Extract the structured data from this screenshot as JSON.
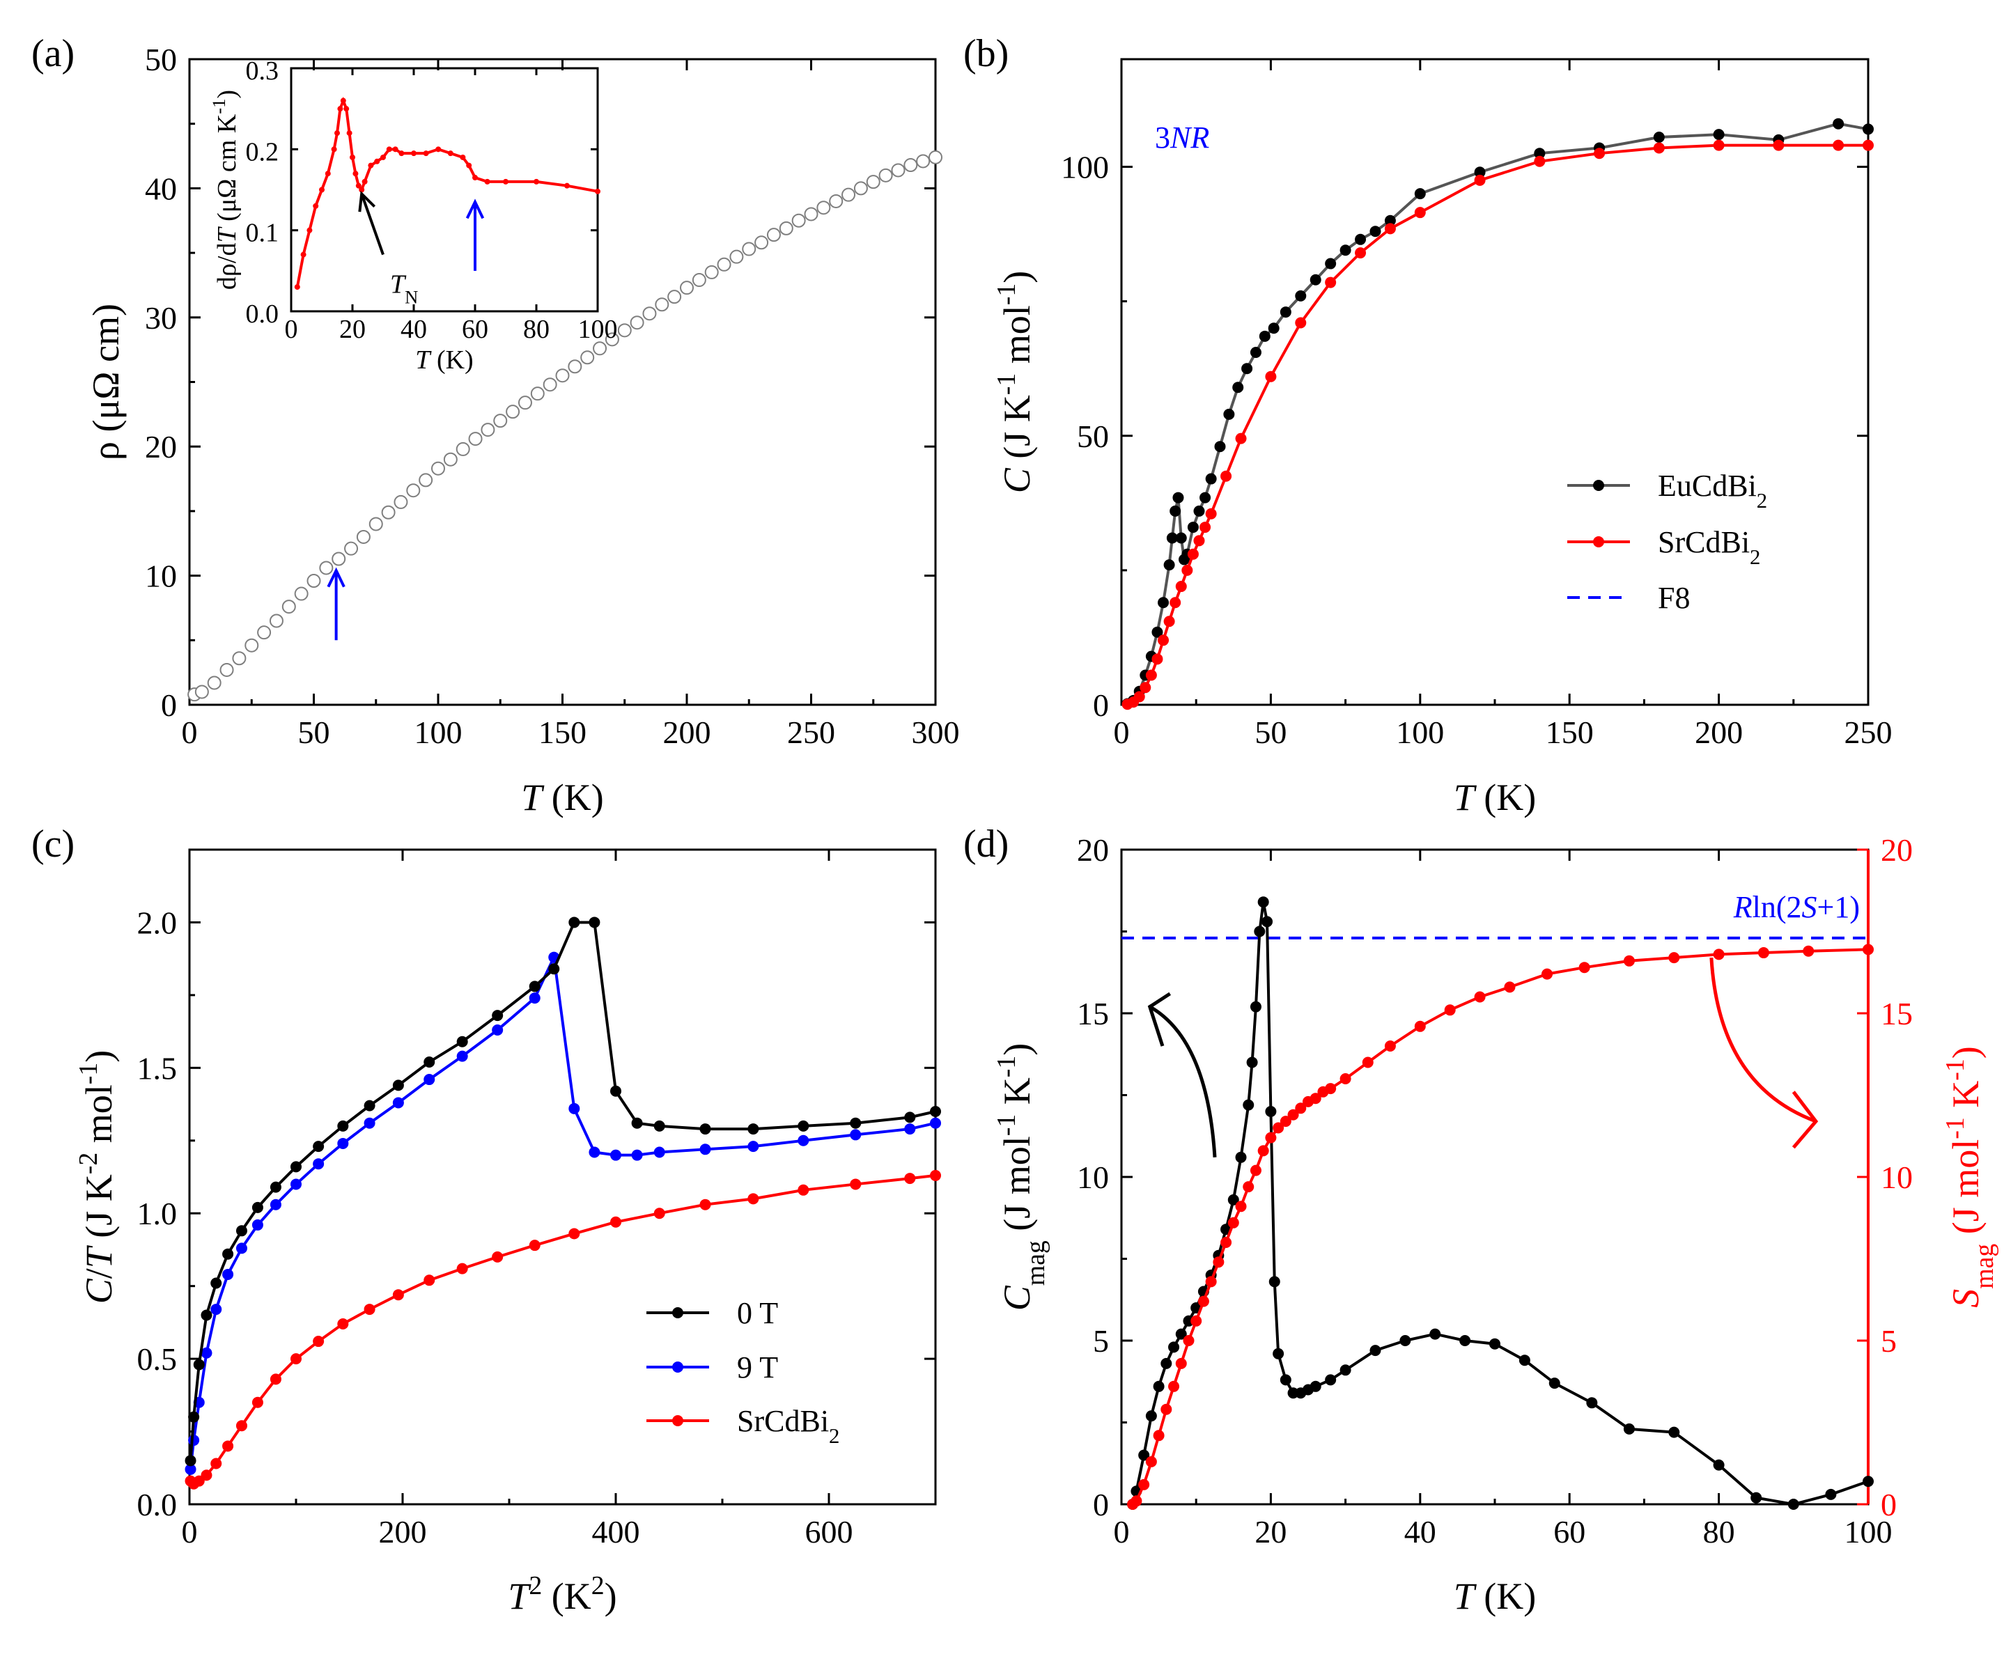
{
  "figure": {
    "panels": [
      "(a)",
      "(b)",
      "(c)",
      "(d)"
    ]
  },
  "chart_data": [
    {
      "id": "a",
      "type": "scatter",
      "panel_label": "(a)",
      "xlabel": "T (K)",
      "xlabel_parts": [
        "T",
        " (K)"
      ],
      "ylabel": "ρ (μΩ cm)",
      "xlim": [
        0,
        300
      ],
      "ylim": [
        0,
        50
      ],
      "xticks": [
        0,
        50,
        100,
        150,
        200,
        250,
        300
      ],
      "yticks": [
        0,
        10,
        20,
        30,
        40,
        50
      ],
      "series": [
        {
          "name": "ρ(T)",
          "color": "#7f7f7f",
          "marker": "open-circle",
          "x": [
            2,
            5,
            10,
            15,
            20,
            25,
            30,
            35,
            40,
            45,
            50,
            55,
            60,
            65,
            70,
            75,
            80,
            85,
            90,
            95,
            100,
            105,
            110,
            115,
            120,
            125,
            130,
            135,
            140,
            145,
            150,
            155,
            160,
            165,
            170,
            175,
            180,
            185,
            190,
            195,
            200,
            205,
            210,
            215,
            220,
            225,
            230,
            235,
            240,
            245,
            250,
            255,
            260,
            265,
            270,
            275,
            280,
            285,
            290,
            295,
            300
          ],
          "values": [
            0.8,
            1.0,
            1.7,
            2.7,
            3.6,
            4.6,
            5.6,
            6.5,
            7.6,
            8.6,
            9.6,
            10.6,
            11.3,
            12.1,
            13.0,
            14.0,
            14.9,
            15.7,
            16.6,
            17.4,
            18.3,
            19.0,
            19.8,
            20.6,
            21.3,
            22.0,
            22.7,
            23.4,
            24.1,
            24.8,
            25.5,
            26.2,
            26.9,
            27.6,
            28.3,
            29.0,
            29.6,
            30.3,
            31.0,
            31.6,
            32.3,
            32.9,
            33.5,
            34.1,
            34.7,
            35.3,
            35.8,
            36.4,
            36.9,
            37.5,
            38.0,
            38.5,
            39.0,
            39.5,
            40.0,
            40.5,
            41.0,
            41.4,
            41.8,
            42.1,
            42.4
          ]
        }
      ],
      "annotations": [
        {
          "type": "arrow",
          "color": "#0000ff",
          "x": 59,
          "y_tail": 5.0,
          "y_head": 10.4
        }
      ],
      "inset": {
        "xlabel": "T (K)",
        "xlabel_parts": [
          "T",
          " (K)"
        ],
        "ylabel": "dρ/dT (μΩ cm K⁻¹)",
        "ylabel_parts": [
          "dρ/d",
          "T",
          " (μΩ cm K",
          "-1",
          ")"
        ],
        "xlim": [
          0,
          100
        ],
        "ylim": [
          0,
          0.3
        ],
        "xticks": [
          0,
          20,
          40,
          60,
          80,
          100
        ],
        "yticks": [
          0.0,
          0.1,
          0.2,
          0.3
        ],
        "series": [
          {
            "name": "dρ/dT",
            "color": "#ff0000",
            "x": [
              2,
              4,
              6,
              8,
              10,
              12,
              14,
              15,
              16,
              17,
              18,
              19,
              20,
              21,
              22,
              23,
              24,
              26,
              28,
              30,
              32,
              34,
              36,
              40,
              44,
              48,
              52,
              56,
              58,
              60,
              64,
              70,
              80,
              90,
              100
            ],
            "values": [
              0.03,
              0.07,
              0.1,
              0.13,
              0.15,
              0.17,
              0.2,
              0.22,
              0.25,
              0.26,
              0.25,
              0.22,
              0.19,
              0.17,
              0.155,
              0.15,
              0.16,
              0.18,
              0.185,
              0.19,
              0.2,
              0.2,
              0.195,
              0.195,
              0.195,
              0.2,
              0.195,
              0.19,
              0.18,
              0.165,
              0.16,
              0.16,
              0.16,
              0.155,
              0.148
            ]
          }
        ],
        "annotations": [
          {
            "type": "arrow",
            "color": "#000000",
            "label": "T_N",
            "label_parts": [
              "T",
              "N"
            ],
            "x_tail": 30,
            "y_tail": 0.07,
            "x_head": 23,
            "y_head": 0.145
          },
          {
            "type": "arrow",
            "color": "#0000ff",
            "x": 60,
            "y_tail": 0.05,
            "y_head": 0.135
          }
        ]
      }
    },
    {
      "id": "b",
      "type": "line",
      "panel_label": "(b)",
      "xlabel": "T (K)",
      "xlabel_parts": [
        "T",
        " (K)"
      ],
      "ylabel": "C (J K⁻¹ mol⁻¹)",
      "ylabel_parts": [
        "C",
        " (J K",
        "-1",
        " mol",
        "-1",
        ")"
      ],
      "xlim": [
        0,
        250
      ],
      "ylim": [
        0,
        120
      ],
      "xticks": [
        0,
        50,
        100,
        150,
        200,
        250
      ],
      "yticks": [
        0,
        50,
        100
      ],
      "text_label": "3NR",
      "text_label_parts": [
        "3",
        "NR"
      ],
      "legend": {
        "position": "center-right",
        "entries": [
          "EuCdBi2",
          "SrCdBi2",
          "F8"
        ]
      },
      "series": [
        {
          "name": "EuCdBi2",
          "legend_parts": [
            "EuCdBi",
            "2"
          ],
          "color": "#000000",
          "line_color": "#555555",
          "x": [
            2,
            4,
            6,
            8,
            10,
            12,
            14,
            16,
            17,
            18,
            19,
            20,
            21,
            22,
            24,
            26,
            28,
            30,
            33,
            36,
            39,
            42,
            45,
            48,
            51,
            55,
            60,
            65,
            70,
            75,
            80,
            85,
            90,
            100,
            120,
            140,
            160,
            180,
            200,
            220,
            240,
            250
          ],
          "values": [
            0.2,
            0.8,
            2.5,
            5.5,
            9,
            13.5,
            19,
            26,
            31,
            36,
            38.5,
            31,
            27,
            28,
            33,
            36,
            38.5,
            42,
            48,
            54,
            59,
            62.5,
            65.5,
            68.5,
            70,
            73,
            76,
            79,
            82,
            84.5,
            86.5,
            88,
            90,
            95,
            99,
            102.5,
            103.5,
            105.5,
            106,
            105,
            108,
            107
          ]
        },
        {
          "name": "SrCdBi2",
          "legend_parts": [
            "SrCdBi",
            "2"
          ],
          "color": "#ff0000",
          "line_color": "#ff0000",
          "x": [
            2,
            4,
            6,
            8,
            10,
            12,
            14,
            16,
            18,
            20,
            22,
            24,
            26,
            28,
            30,
            35,
            40,
            50,
            60,
            70,
            80,
            90,
            100,
            120,
            140,
            160,
            180,
            200,
            220,
            240,
            250
          ],
          "values": [
            0.1,
            0.5,
            1.5,
            3.2,
            5.5,
            8.5,
            12,
            15.5,
            19,
            22,
            25,
            28,
            30.5,
            33,
            35.5,
            42.5,
            49.5,
            61,
            71,
            78.5,
            84,
            88.5,
            91.5,
            97.5,
            101,
            102.5,
            103.5,
            104,
            104,
            104,
            104
          ]
        },
        {
          "name": "F8",
          "color": "#0000ff",
          "style": "dashed",
          "note": "legend entry only"
        }
      ]
    },
    {
      "id": "c",
      "type": "line",
      "panel_label": "(c)",
      "xlabel": "T² (K²)",
      "xlabel_parts": [
        "T",
        "2",
        " (K",
        "2",
        ")"
      ],
      "ylabel": "C/T (J K⁻² mol⁻¹)",
      "ylabel_parts": [
        "C",
        "/",
        "T",
        " (J K",
        "-2",
        " mol",
        "-1",
        ")"
      ],
      "xlim": [
        0,
        700
      ],
      "ylim": [
        0,
        2.25
      ],
      "xticks": [
        0,
        200,
        400,
        600
      ],
      "yticks": [
        0.0,
        0.5,
        1.0,
        1.5,
        2.0
      ],
      "legend": {
        "position": "lower-center",
        "entries": [
          "0 T",
          "9 T",
          "SrCdBi2"
        ]
      },
      "series": [
        {
          "name": "0 T",
          "color": "#000000",
          "x": [
            1,
            4,
            9,
            16,
            25,
            36,
            49,
            64,
            81,
            100,
            121,
            144,
            169,
            196,
            225,
            256,
            289,
            324,
            342,
            361,
            380,
            400,
            420,
            441,
            484,
            529,
            576,
            625,
            676,
            700
          ],
          "values": [
            0.15,
            0.3,
            0.48,
            0.65,
            0.76,
            0.86,
            0.94,
            1.02,
            1.09,
            1.16,
            1.23,
            1.3,
            1.37,
            1.44,
            1.52,
            1.59,
            1.68,
            1.78,
            1.84,
            2.0,
            2.0,
            1.42,
            1.31,
            1.3,
            1.29,
            1.29,
            1.3,
            1.31,
            1.33,
            1.35
          ]
        },
        {
          "name": "9 T",
          "color": "#0000ff",
          "x": [
            1,
            4,
            9,
            16,
            25,
            36,
            49,
            64,
            81,
            100,
            121,
            144,
            169,
            196,
            225,
            256,
            289,
            324,
            342,
            361,
            380,
            400,
            420,
            441,
            484,
            529,
            576,
            625,
            676,
            700
          ],
          "values": [
            0.12,
            0.22,
            0.35,
            0.52,
            0.67,
            0.79,
            0.88,
            0.96,
            1.03,
            1.1,
            1.17,
            1.24,
            1.31,
            1.38,
            1.46,
            1.54,
            1.63,
            1.74,
            1.88,
            1.36,
            1.21,
            1.2,
            1.2,
            1.21,
            1.22,
            1.23,
            1.25,
            1.27,
            1.29,
            1.31
          ]
        },
        {
          "name": "SrCdBi2",
          "legend_parts": [
            "SrCdBi",
            "2"
          ],
          "color": "#ff0000",
          "x": [
            1,
            4,
            9,
            16,
            25,
            36,
            49,
            64,
            81,
            100,
            121,
            144,
            169,
            196,
            225,
            256,
            289,
            324,
            361,
            400,
            441,
            484,
            529,
            576,
            625,
            676,
            700
          ],
          "values": [
            0.08,
            0.07,
            0.08,
            0.1,
            0.14,
            0.2,
            0.27,
            0.35,
            0.43,
            0.5,
            0.56,
            0.62,
            0.67,
            0.72,
            0.77,
            0.81,
            0.85,
            0.89,
            0.93,
            0.97,
            1.0,
            1.03,
            1.05,
            1.08,
            1.1,
            1.12,
            1.13
          ]
        }
      ]
    },
    {
      "id": "d",
      "type": "line",
      "panel_label": "(d)",
      "xlabel": "T (K)",
      "xlabel_parts": [
        "T",
        " (K)"
      ],
      "ylabel": "C_mag (J mol⁻¹ K⁻¹)",
      "ylabel_parts": [
        "C",
        "mag",
        " (J mol",
        "-1",
        " K",
        "-1",
        ")"
      ],
      "ylabel_right": "S_mag (J mol⁻¹ K⁻¹)",
      "ylabel_right_parts": [
        "S",
        "mag",
        " (J mol",
        "-1",
        " K",
        "-1",
        ")"
      ],
      "right_axis_color": "#ff0000",
      "xlim": [
        0,
        100
      ],
      "ylim": [
        0,
        20
      ],
      "ylim_right": [
        0,
        20
      ],
      "xticks": [
        0,
        20,
        40,
        60,
        80,
        100
      ],
      "yticks": [
        0,
        5,
        10,
        15,
        20
      ],
      "yticks_right": [
        0,
        5,
        10,
        15,
        20
      ],
      "reference_line": {
        "label": "Rln(2S+1)",
        "label_parts": [
          "R",
          "ln(2",
          "S",
          "+1)"
        ],
        "value": 17.3,
        "color": "#0000ff",
        "style": "dashed"
      },
      "series": [
        {
          "name": "C_mag",
          "axis": "left",
          "color": "#000000",
          "x": [
            1.5,
            2,
            3,
            4,
            5,
            6,
            7,
            8,
            9,
            10,
            11,
            12,
            13,
            14,
            15,
            16,
            17,
            17.5,
            18,
            18.5,
            19,
            19.5,
            20,
            20.5,
            21,
            22,
            23,
            24,
            25,
            26,
            28,
            30,
            34,
            38,
            42,
            46,
            50,
            54,
            58,
            63,
            68,
            74,
            80,
            85,
            90,
            95,
            100
          ],
          "values": [
            0.0,
            0.4,
            1.5,
            2.7,
            3.6,
            4.3,
            4.8,
            5.2,
            5.6,
            6.0,
            6.5,
            7.0,
            7.6,
            8.4,
            9.3,
            10.6,
            12.2,
            13.5,
            15.2,
            17.5,
            18.4,
            17.8,
            12.0,
            6.8,
            4.6,
            3.8,
            3.4,
            3.4,
            3.5,
            3.6,
            3.8,
            4.1,
            4.7,
            5.0,
            5.2,
            5.0,
            4.9,
            4.4,
            3.7,
            3.1,
            2.3,
            2.2,
            1.2,
            0.2,
            0.0,
            0.3,
            0.7
          ]
        },
        {
          "name": "S_mag",
          "axis": "right",
          "color": "#ff0000",
          "x": [
            1.5,
            2,
            3,
            4,
            5,
            6,
            7,
            8,
            9,
            10,
            11,
            12,
            13,
            14,
            15,
            16,
            17,
            18,
            19,
            20,
            21,
            22,
            23,
            24,
            25,
            26,
            27,
            28,
            30,
            33,
            36,
            40,
            44,
            48,
            52,
            57,
            62,
            68,
            74,
            80,
            86,
            92,
            100
          ],
          "values": [
            0.0,
            0.1,
            0.6,
            1.3,
            2.1,
            2.9,
            3.6,
            4.3,
            5.0,
            5.6,
            6.2,
            6.8,
            7.4,
            8.0,
            8.6,
            9.1,
            9.7,
            10.2,
            10.8,
            11.2,
            11.5,
            11.7,
            11.9,
            12.1,
            12.3,
            12.4,
            12.6,
            12.7,
            13.0,
            13.5,
            14.0,
            14.6,
            15.1,
            15.5,
            15.8,
            16.2,
            16.4,
            16.6,
            16.7,
            16.8,
            16.85,
            16.9,
            16.95
          ]
        }
      ],
      "annotations": [
        {
          "type": "arrow",
          "color": "#000000",
          "direction": "to-left-axis"
        },
        {
          "type": "arrow",
          "color": "#ff0000",
          "direction": "to-right-axis"
        }
      ]
    }
  ]
}
